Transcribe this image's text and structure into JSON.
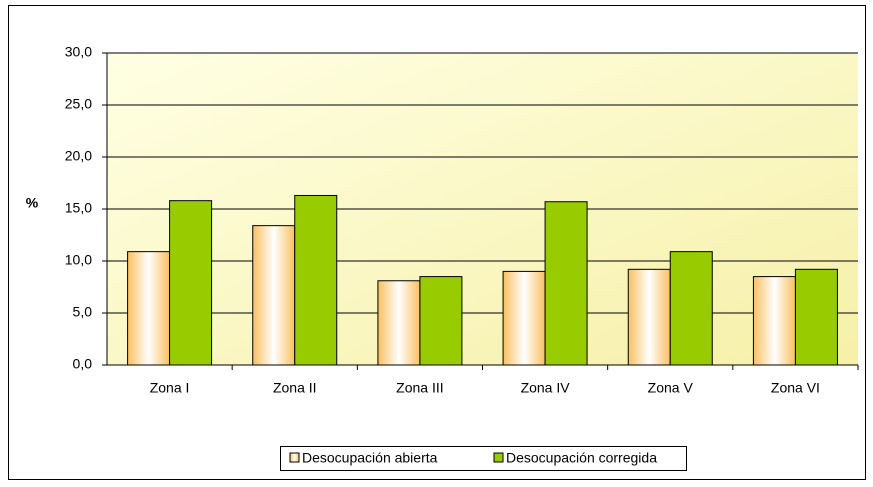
{
  "chart_data": {
    "type": "bar",
    "y_label": "%",
    "categories": [
      "Zona I",
      "Zona II",
      "Zona III",
      "Zona IV",
      "Zona V",
      "Zona VI"
    ],
    "series": [
      {
        "name": "Desocupación abierta",
        "color": "#f9c060",
        "values": [
          10.9,
          13.4,
          8.1,
          9.0,
          9.2,
          8.5
        ]
      },
      {
        "name": "Desocupación corregida",
        "color": "#99cc00",
        "values": [
          15.8,
          16.3,
          8.5,
          15.7,
          10.9,
          9.2
        ]
      }
    ],
    "ylim": [
      0,
      30
    ],
    "yticks": [
      {
        "value": 0,
        "label": "0,0"
      },
      {
        "value": 5,
        "label": "5,0"
      },
      {
        "value": 10,
        "label": "10,0"
      },
      {
        "value": 15,
        "label": "15,0"
      },
      {
        "value": 20,
        "label": "20,0"
      },
      {
        "value": 25,
        "label": "25,0"
      },
      {
        "value": 30,
        "label": "30,0"
      }
    ],
    "grid": true,
    "legend": "bottom"
  }
}
